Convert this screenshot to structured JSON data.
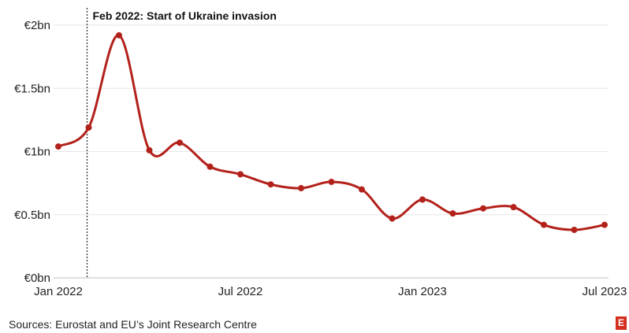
{
  "chart_data": {
    "type": "line",
    "title": "",
    "xlabel": "",
    "ylabel": "",
    "y_ticks": [
      {
        "value": 0,
        "label": "€0bn"
      },
      {
        "value": 0.5,
        "label": "€0.5bn"
      },
      {
        "value": 1,
        "label": "€1bn"
      },
      {
        "value": 1.5,
        "label": "€1.5bn"
      },
      {
        "value": 2,
        "label": "€2bn"
      }
    ],
    "x_ticks": [
      {
        "x": "2022-01",
        "label": "Jan 2022"
      },
      {
        "x": "2022-07",
        "label": "Jul 2022"
      },
      {
        "x": "2023-01",
        "label": "Jan 2023"
      },
      {
        "x": "2023-07",
        "label": "Jul 2023"
      }
    ],
    "ylim": [
      0,
      2
    ],
    "xlim": [
      "2022-01",
      "2023-07"
    ],
    "grid": true,
    "series": [
      {
        "color": "#b3211b",
        "points": [
          {
            "x": "2022-01",
            "y": 1.04
          },
          {
            "x": "2022-02",
            "y": 1.19
          },
          {
            "x": "2022-03",
            "y": 1.92
          },
          {
            "x": "2022-04",
            "y": 1.01
          },
          {
            "x": "2022-05",
            "y": 1.07
          },
          {
            "x": "2022-06",
            "y": 0.88
          },
          {
            "x": "2022-07",
            "y": 0.82
          },
          {
            "x": "2022-08",
            "y": 0.74
          },
          {
            "x": "2022-09",
            "y": 0.71
          },
          {
            "x": "2022-10",
            "y": 0.76
          },
          {
            "x": "2022-11",
            "y": 0.7
          },
          {
            "x": "2022-12",
            "y": 0.47
          },
          {
            "x": "2023-01",
            "y": 0.62
          },
          {
            "x": "2023-02",
            "y": 0.51
          },
          {
            "x": "2023-03",
            "y": 0.55
          },
          {
            "x": "2023-04",
            "y": 0.56
          },
          {
            "x": "2023-05",
            "y": 0.42
          },
          {
            "x": "2023-06",
            "y": 0.38
          },
          {
            "x": "2023-07",
            "y": 0.42
          }
        ]
      }
    ],
    "annotations": [
      {
        "x": "2022-02",
        "label": "Feb 2022: Start of Ukraine invasion",
        "style": "dotted-vertical-line"
      }
    ]
  },
  "footer": {
    "source": "Sources: Eurostat and EU’s Joint Research Centre",
    "logo_letter": "E"
  },
  "colors": {
    "line": "#b3211b",
    "grid": "#e6e6e6",
    "logo": "#d42e1e"
  }
}
